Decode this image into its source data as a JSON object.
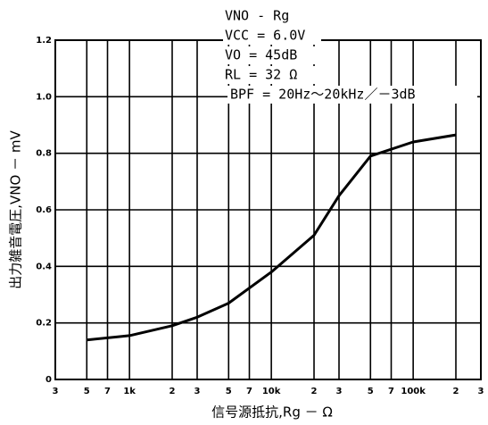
{
  "chart_data": {
    "type": "line",
    "annotations": [
      "VNO - Rg",
      "VCC = 6.0V",
      "VO = 45dB",
      "RL = 32 Ω",
      "BPF = 20Hz～20kHz／－3dB"
    ],
    "x_label": "信号源抵抗,Rg － Ω",
    "y_label": "出力雑音電圧,VNO － mV",
    "x": [
      500,
      1000,
      2000,
      3000,
      5000,
      10000,
      20000,
      30000,
      50000,
      100000,
      200000
    ],
    "series": [
      {
        "color": "#000000",
        "values": [
          0.14,
          0.155,
          0.19,
          0.22,
          0.27,
          0.38,
          0.51,
          0.65,
          0.79,
          0.84,
          0.865
        ]
      }
    ],
    "xscale": "log",
    "xlim": [
      300,
      300000
    ],
    "xticks": [
      {
        "value": 300,
        "label": "3"
      },
      {
        "value": 500,
        "label": "5"
      },
      {
        "value": 700,
        "label": "7"
      },
      {
        "value": 1000,
        "label": "1k"
      },
      {
        "value": 2000,
        "label": "2"
      },
      {
        "value": 3000,
        "label": "3"
      },
      {
        "value": 5000,
        "label": "5"
      },
      {
        "value": 7000,
        "label": "7"
      },
      {
        "value": 10000,
        "label": "10k"
      },
      {
        "value": 20000,
        "label": "2"
      },
      {
        "value": 30000,
        "label": "3"
      },
      {
        "value": 50000,
        "label": "5"
      },
      {
        "value": 70000,
        "label": "7"
      },
      {
        "value": 100000,
        "label": "100k"
      },
      {
        "value": 200000,
        "label": "2"
      },
      {
        "value": 300000,
        "label": "3"
      }
    ],
    "ylim": [
      0,
      1.2
    ],
    "yticks": [
      0,
      0.2,
      0.4,
      0.6,
      0.8,
      {
        "value": 1.0,
        "label": "1.0"
      },
      1.2
    ],
    "grid": true
  }
}
